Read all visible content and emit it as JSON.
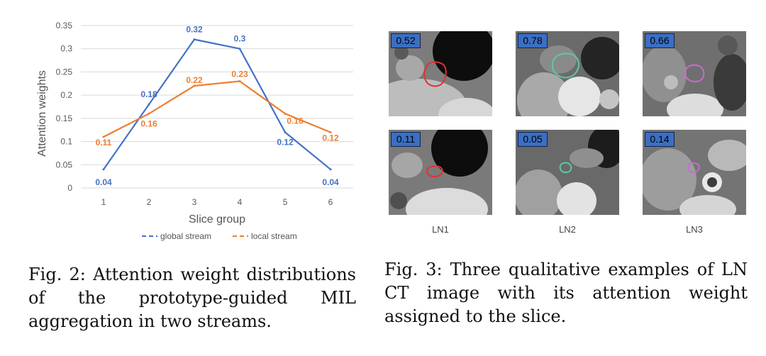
{
  "chart_data": {
    "type": "line",
    "x": [
      1,
      2,
      3,
      4,
      5,
      6
    ],
    "xlabel": "Slice group",
    "ylabel": "Attention weights",
    "ylim": [
      0,
      0.35
    ],
    "yticks": [
      "0",
      "0.05",
      "0.1",
      "0.15",
      "0.2",
      "0.25",
      "0.3",
      "0.35"
    ],
    "grid": true,
    "legend_position": "bottom",
    "series": [
      {
        "name": "global stream",
        "color": "#4472c4",
        "values": [
          0.04,
          0.18,
          0.32,
          0.3,
          0.12,
          0.04
        ],
        "labels": [
          "0.04",
          "0.18",
          "0.32",
          "0.3",
          "0.12",
          "0.04"
        ]
      },
      {
        "name": "local stream",
        "color": "#ed7d31",
        "values": [
          0.11,
          0.16,
          0.22,
          0.23,
          0.16,
          0.12
        ],
        "labels": [
          "0.11",
          "0.16",
          "0.22",
          "0.23",
          "0.16",
          "0.12"
        ]
      }
    ]
  },
  "figure3": {
    "columns": [
      {
        "label": "LN1",
        "roi_color": "#e53030",
        "top_score": "0.52",
        "bottom_score": "0.11"
      },
      {
        "label": "LN2",
        "roi_color": "#5fc8a4",
        "top_score": "0.78",
        "bottom_score": "0.05"
      },
      {
        "label": "LN3",
        "roi_color": "#c86bd0",
        "top_score": "0.66",
        "bottom_score": "0.14"
      }
    ]
  },
  "captions": {
    "fig2": "Fig. 2: Attention weight distributions of the prototype-guided MIL aggregation in two streams.",
    "fig3": "Fig. 3: Three qualitative examples of LN CT image with its attention weight assigned to the slice."
  }
}
